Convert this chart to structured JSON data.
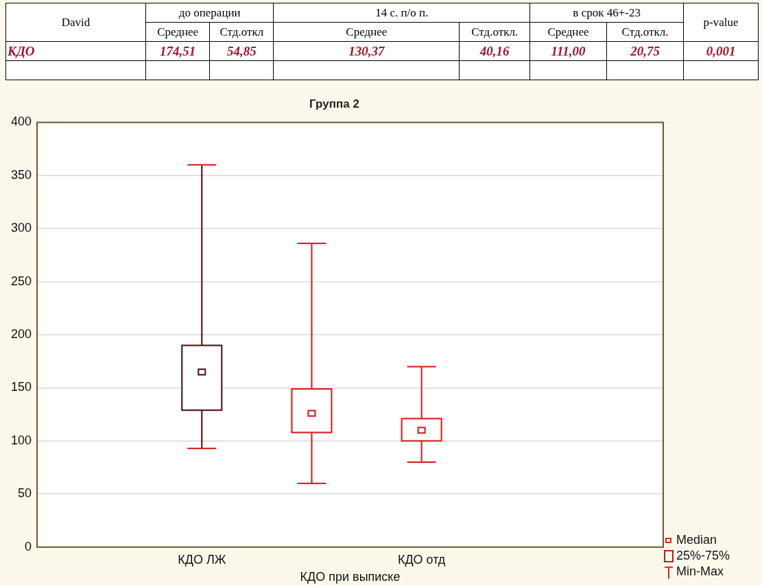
{
  "chart_data": [
    {
      "type": "other",
      "annotations": [
        "David",
        "до операции",
        "14 с. п/о п.",
        "в срок 46+-23",
        "p-value",
        "Среднее",
        "Стд.откл",
        "Среднее",
        "Стд.откл.",
        "Среднее",
        "Стд.откл.",
        "КДО",
        "174,51",
        "54,85",
        "130,37",
        "40,16",
        "111,00",
        "20,75",
        "0,001"
      ]
    },
    {
      "type": "box",
      "title": "Группа 2",
      "xlabel": "КДО при выписке",
      "categories": [
        "КДО ЛЖ",
        null,
        "КДО отд"
      ],
      "boxes": [
        {
          "low": 93,
          "q1": 129,
          "median": 165,
          "q3": 190,
          "high": 360
        },
        {
          "low": 60,
          "q1": 108,
          "median": 126,
          "q3": 149,
          "high": 286
        },
        {
          "low": 80,
          "q1": 100,
          "median": 110,
          "q3": 121,
          "high": 170
        }
      ],
      "colors": [
        "#5a1e1e",
        "#d42a2a",
        "#d42a2a"
      ],
      "ylim": [
        0,
        400
      ],
      "yticks": [
        0,
        50,
        100,
        150,
        200,
        250,
        300,
        350,
        400
      ],
      "grid": "y",
      "annotations": [
        "Median",
        "25%-75%",
        "Min-Max"
      ]
    }
  ]
}
